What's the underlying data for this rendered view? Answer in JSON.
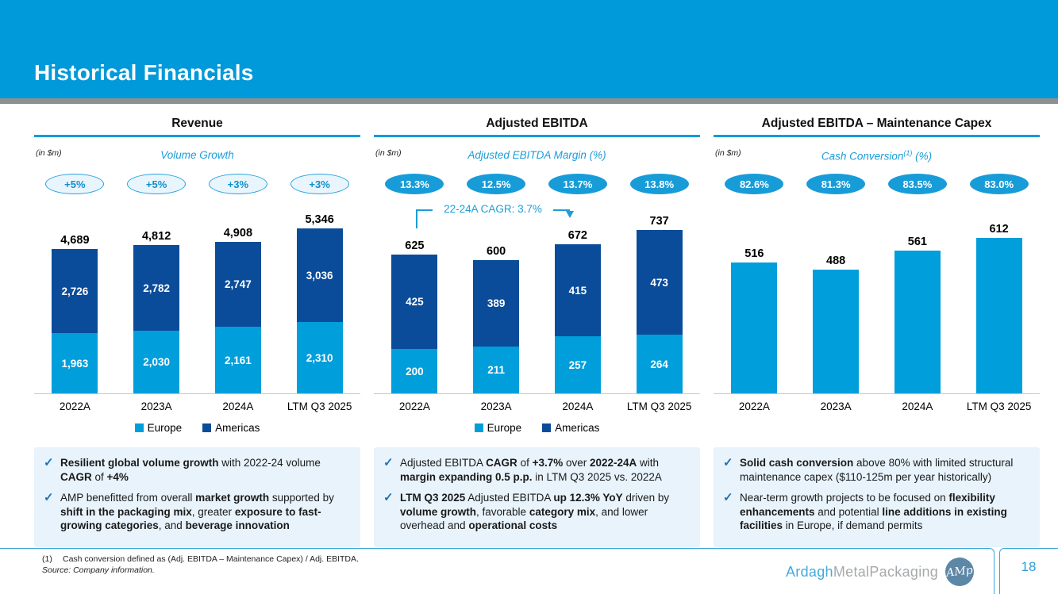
{
  "slide": {
    "title": "Historical Financials",
    "page_number": "18",
    "footnote_marker": "(1)",
    "footnote_text": "Cash conversion defined as (Adj. EBITDA – Maintenance Capex) / Adj. EBITDA.",
    "source": "Source: Company information.",
    "logo": {
      "part1": "Ardagh",
      "part2": "MetalPackaging",
      "monogram": "AMp"
    }
  },
  "colors": {
    "light": "#009EDB",
    "dark": "#0A4C99",
    "accent": "#1B9DD8"
  },
  "chart_data": [
    {
      "type": "bar",
      "variant": "stacked",
      "title": "Revenue",
      "unit_label": "(in $m)",
      "subtitle": "Volume Growth",
      "badge_style": "outline",
      "badges": [
        "+5%",
        "+5%",
        "+3%",
        "+3%"
      ],
      "categories": [
        "2022A",
        "2023A",
        "2024A",
        "LTM Q3 2025"
      ],
      "series": [
        {
          "name": "Europe",
          "color_key": "light",
          "values": [
            1963,
            2030,
            2161,
            2310
          ],
          "labels": [
            "1,963",
            "2,030",
            "2,161",
            "2,310"
          ]
        },
        {
          "name": "Americas",
          "color_key": "dark",
          "values": [
            2726,
            2782,
            2747,
            3036
          ],
          "labels": [
            "2,726",
            "2,782",
            "2,747",
            "3,036"
          ]
        }
      ],
      "totals": [
        4689,
        4812,
        4908,
        5346
      ],
      "total_labels": [
        "4,689",
        "4,812",
        "4,908",
        "5,346"
      ],
      "legend": [
        "Europe",
        "Americas"
      ],
      "ylim": [
        0,
        5600
      ],
      "grid": false
    },
    {
      "type": "bar",
      "variant": "stacked",
      "title": "Adjusted EBITDA",
      "unit_label": "(in $m)",
      "subtitle": "Adjusted EBITDA Margin (%)",
      "badge_style": "filled",
      "badges": [
        "13.3%",
        "12.5%",
        "13.7%",
        "13.8%"
      ],
      "annotation": "22-24A CAGR: 3.7%",
      "categories": [
        "2022A",
        "2023A",
        "2024A",
        "LTM Q3 2025"
      ],
      "series": [
        {
          "name": "Europe",
          "color_key": "light",
          "values": [
            200,
            211,
            257,
            264
          ],
          "labels": [
            "200",
            "211",
            "257",
            "264"
          ]
        },
        {
          "name": "Americas",
          "color_key": "dark",
          "values": [
            425,
            389,
            415,
            473
          ],
          "labels": [
            "425",
            "389",
            "415",
            "473"
          ]
        }
      ],
      "totals": [
        625,
        600,
        672,
        737
      ],
      "total_labels": [
        "625",
        "600",
        "672",
        "737"
      ],
      "legend": [
        "Europe",
        "Americas"
      ],
      "ylim": [
        0,
        780
      ],
      "grid": false
    },
    {
      "type": "bar",
      "variant": "single",
      "title": "Adjusted EBITDA – Maintenance Capex",
      "unit_label": "(in $m)",
      "subtitle": "Cash Conversion",
      "subtitle_sup": "(1)",
      "subtitle_after": " (%)",
      "badge_style": "filled",
      "badges": [
        "82.6%",
        "81.3%",
        "83.5%",
        "83.0%"
      ],
      "categories": [
        "2022A",
        "2023A",
        "2024A",
        "LTM Q3 2025"
      ],
      "series": [
        {
          "name": "Adjusted EBITDA less Maintenance Capex",
          "color_key": "light",
          "values": [
            516,
            488,
            561,
            612
          ],
          "labels": null
        }
      ],
      "totals": [
        516,
        488,
        561,
        612
      ],
      "total_labels": [
        "516",
        "488",
        "561",
        "612"
      ],
      "legend": [],
      "ylim": [
        0,
        680
      ],
      "grid": false
    }
  ],
  "notes": [
    [
      "<b>Resilient global volume growth</b> with 2022-24 volume <b>CAGR</b> of <b>+4%</b>",
      "AMP benefitted from overall <b>market growth</b> supported by <b>shift in the packaging mix</b>, greater <b>exposure to fast-growing categories</b>, and <b>beverage innovation</b>"
    ],
    [
      "Adjusted EBITDA <b>CAGR</b> of <b>+3.7%</b> over <b>2022-24A</b> with <b>margin expanding 0.5 p.p.</b> in LTM Q3 2025 vs. 2022A",
      "<b>LTM Q3 2025</b> Adjusted EBITDA <b>up 12.3% YoY</b> driven by <b>volume growth</b>, favorable <b>category mix</b>, and lower overhead and <b>operational costs</b>"
    ],
    [
      "<b>Solid cash conversion</b> above 80% with limited structural maintenance capex ($110-125m per year historically)",
      "Near-term growth projects to be focused on <b>flexibility enhancements</b> and potential <b>line additions in existing facilities</b> in Europe, if demand permits"
    ]
  ]
}
